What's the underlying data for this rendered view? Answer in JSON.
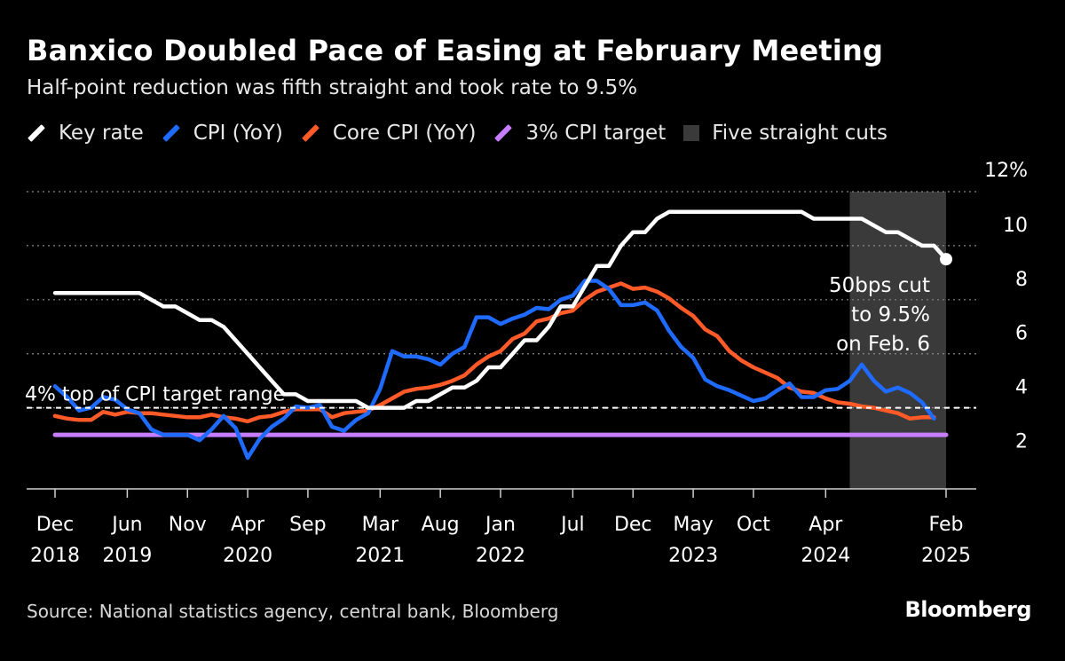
{
  "title": "Banxico Doubled Pace of Easing at February Meeting",
  "subtitle": "Half-point reduction was fifth straight and took rate to 9.5%",
  "legend": [
    {
      "label": "Key rate",
      "color": "#ffffff",
      "kind": "line"
    },
    {
      "label": "CPI (YoY)",
      "color": "#1f6bff",
      "kind": "line"
    },
    {
      "label": "Core CPI (YoY)",
      "color": "#ff5a28",
      "kind": "line"
    },
    {
      "label": "3% CPI target",
      "color": "#c77dff",
      "kind": "line"
    },
    {
      "label": "Five straight cuts",
      "color": "#3a3a3a",
      "kind": "box"
    }
  ],
  "source": "Source: National statistics agency, central bank, Bloomberg",
  "brand": "Bloomberg",
  "chart_data": {
    "type": "line",
    "x_start": "2018-12",
    "x_end": "2025-02",
    "ylim": [
      1,
      12
    ],
    "y_ticks": [
      "12%",
      "10",
      "8",
      "6",
      "4",
      "2"
    ],
    "y_tick_values": [
      12,
      10,
      8,
      6,
      4,
      2
    ],
    "x_ticks": [
      {
        "date": "2018-12",
        "line1": "Dec",
        "line2": "2018"
      },
      {
        "date": "2019-06",
        "line1": "Jun",
        "line2": "2019"
      },
      {
        "date": "2019-11",
        "line1": "Nov",
        "line2": ""
      },
      {
        "date": "2020-04",
        "line1": "Apr",
        "line2": "2020"
      },
      {
        "date": "2020-09",
        "line1": "Sep",
        "line2": ""
      },
      {
        "date": "2021-03",
        "line1": "Mar",
        "line2": "2021"
      },
      {
        "date": "2021-08",
        "line1": "Aug",
        "line2": ""
      },
      {
        "date": "2022-01",
        "line1": "Jan",
        "line2": "2022"
      },
      {
        "date": "2022-07",
        "line1": "Jul",
        "line2": ""
      },
      {
        "date": "2022-12",
        "line1": "Dec",
        "line2": ""
      },
      {
        "date": "2023-05",
        "line1": "May",
        "line2": "2023"
      },
      {
        "date": "2023-10",
        "line1": "Oct",
        "line2": ""
      },
      {
        "date": "2024-04",
        "line1": "Apr",
        "line2": "2024"
      },
      {
        "date": "2025-02",
        "line1": "Feb",
        "line2": "2025"
      }
    ],
    "shaded_region": {
      "label": "Five straight cuts",
      "start": "2024-06",
      "end": "2025-02"
    },
    "reference_lines": [
      {
        "name": "4% top of CPI target range",
        "value": 4,
        "label": "4% top of CPI target range"
      }
    ],
    "annotation": {
      "lines": [
        "50bps cut",
        "to 9.5%",
        "on Feb. 6"
      ],
      "date": "2025-02",
      "value": 9.5
    },
    "series": [
      {
        "name": "Key rate",
        "color": "#ffffff",
        "points": [
          [
            "2018-12",
            8.25
          ],
          [
            "2019-01",
            8.25
          ],
          [
            "2019-02",
            8.25
          ],
          [
            "2019-03",
            8.25
          ],
          [
            "2019-04",
            8.25
          ],
          [
            "2019-05",
            8.25
          ],
          [
            "2019-06",
            8.25
          ],
          [
            "2019-07",
            8.25
          ],
          [
            "2019-08",
            8.0
          ],
          [
            "2019-09",
            7.75
          ],
          [
            "2019-10",
            7.75
          ],
          [
            "2019-11",
            7.5
          ],
          [
            "2019-12",
            7.25
          ],
          [
            "2020-01",
            7.25
          ],
          [
            "2020-02",
            7.0
          ],
          [
            "2020-03",
            6.5
          ],
          [
            "2020-04",
            6.0
          ],
          [
            "2020-05",
            5.5
          ],
          [
            "2020-06",
            5.0
          ],
          [
            "2020-07",
            4.5
          ],
          [
            "2020-08",
            4.5
          ],
          [
            "2020-09",
            4.25
          ],
          [
            "2020-10",
            4.25
          ],
          [
            "2020-11",
            4.25
          ],
          [
            "2020-12",
            4.25
          ],
          [
            "2021-01",
            4.25
          ],
          [
            "2021-02",
            4.0
          ],
          [
            "2021-03",
            4.0
          ],
          [
            "2021-04",
            4.0
          ],
          [
            "2021-05",
            4.0
          ],
          [
            "2021-06",
            4.25
          ],
          [
            "2021-07",
            4.25
          ],
          [
            "2021-08",
            4.5
          ],
          [
            "2021-09",
            4.75
          ],
          [
            "2021-10",
            4.75
          ],
          [
            "2021-11",
            5.0
          ],
          [
            "2021-12",
            5.5
          ],
          [
            "2022-01",
            5.5
          ],
          [
            "2022-02",
            6.0
          ],
          [
            "2022-03",
            6.5
          ],
          [
            "2022-04",
            6.5
          ],
          [
            "2022-05",
            7.0
          ],
          [
            "2022-06",
            7.75
          ],
          [
            "2022-07",
            7.75
          ],
          [
            "2022-08",
            8.5
          ],
          [
            "2022-09",
            9.25
          ],
          [
            "2022-10",
            9.25
          ],
          [
            "2022-11",
            10.0
          ],
          [
            "2022-12",
            10.5
          ],
          [
            "2023-01",
            10.5
          ],
          [
            "2023-02",
            11.0
          ],
          [
            "2023-03",
            11.25
          ],
          [
            "2023-04",
            11.25
          ],
          [
            "2023-05",
            11.25
          ],
          [
            "2023-06",
            11.25
          ],
          [
            "2023-07",
            11.25
          ],
          [
            "2023-08",
            11.25
          ],
          [
            "2023-09",
            11.25
          ],
          [
            "2023-10",
            11.25
          ],
          [
            "2023-11",
            11.25
          ],
          [
            "2023-12",
            11.25
          ],
          [
            "2024-01",
            11.25
          ],
          [
            "2024-02",
            11.25
          ],
          [
            "2024-03",
            11.0
          ],
          [
            "2024-04",
            11.0
          ],
          [
            "2024-05",
            11.0
          ],
          [
            "2024-06",
            11.0
          ],
          [
            "2024-07",
            11.0
          ],
          [
            "2024-08",
            10.75
          ],
          [
            "2024-09",
            10.5
          ],
          [
            "2024-10",
            10.5
          ],
          [
            "2024-11",
            10.25
          ],
          [
            "2024-12",
            10.0
          ],
          [
            "2025-01",
            10.0
          ],
          [
            "2025-02",
            9.5
          ]
        ]
      },
      {
        "name": "CPI (YoY)",
        "color": "#1f6bff",
        "points": [
          [
            "2018-12",
            4.8
          ],
          [
            "2019-01",
            4.4
          ],
          [
            "2019-02",
            3.9
          ],
          [
            "2019-03",
            4.0
          ],
          [
            "2019-04",
            4.4
          ],
          [
            "2019-05",
            4.3
          ],
          [
            "2019-06",
            3.95
          ],
          [
            "2019-07",
            3.8
          ],
          [
            "2019-08",
            3.2
          ],
          [
            "2019-09",
            3.0
          ],
          [
            "2019-10",
            3.0
          ],
          [
            "2019-11",
            3.0
          ],
          [
            "2019-12",
            2.8
          ],
          [
            "2020-01",
            3.2
          ],
          [
            "2020-02",
            3.7
          ],
          [
            "2020-03",
            3.25
          ],
          [
            "2020-04",
            2.15
          ],
          [
            "2020-05",
            2.85
          ],
          [
            "2020-06",
            3.3
          ],
          [
            "2020-07",
            3.6
          ],
          [
            "2020-08",
            4.05
          ],
          [
            "2020-09",
            4.0
          ],
          [
            "2020-10",
            4.1
          ],
          [
            "2020-11",
            3.3
          ],
          [
            "2020-12",
            3.15
          ],
          [
            "2021-01",
            3.55
          ],
          [
            "2021-02",
            3.8
          ],
          [
            "2021-03",
            4.7
          ],
          [
            "2021-04",
            6.1
          ],
          [
            "2021-05",
            5.9
          ],
          [
            "2021-06",
            5.9
          ],
          [
            "2021-07",
            5.8
          ],
          [
            "2021-08",
            5.6
          ],
          [
            "2021-09",
            6.0
          ],
          [
            "2021-10",
            6.25
          ],
          [
            "2021-11",
            7.35
          ],
          [
            "2021-12",
            7.35
          ],
          [
            "2022-01",
            7.1
          ],
          [
            "2022-02",
            7.3
          ],
          [
            "2022-03",
            7.45
          ],
          [
            "2022-04",
            7.7
          ],
          [
            "2022-05",
            7.65
          ],
          [
            "2022-06",
            8.0
          ],
          [
            "2022-07",
            8.15
          ],
          [
            "2022-08",
            8.7
          ],
          [
            "2022-09",
            8.7
          ],
          [
            "2022-10",
            8.4
          ],
          [
            "2022-11",
            7.8
          ],
          [
            "2022-12",
            7.8
          ],
          [
            "2023-01",
            7.9
          ],
          [
            "2023-02",
            7.6
          ],
          [
            "2023-03",
            6.85
          ],
          [
            "2023-04",
            6.25
          ],
          [
            "2023-05",
            5.85
          ],
          [
            "2023-06",
            5.05
          ],
          [
            "2023-07",
            4.8
          ],
          [
            "2023-08",
            4.65
          ],
          [
            "2023-09",
            4.45
          ],
          [
            "2023-10",
            4.25
          ],
          [
            "2023-11",
            4.35
          ],
          [
            "2023-12",
            4.65
          ],
          [
            "2024-01",
            4.9
          ],
          [
            "2024-02",
            4.4
          ],
          [
            "2024-03",
            4.4
          ],
          [
            "2024-04",
            4.65
          ],
          [
            "2024-05",
            4.7
          ],
          [
            "2024-06",
            5.0
          ],
          [
            "2024-07",
            5.6
          ],
          [
            "2024-08",
            5.0
          ],
          [
            "2024-09",
            4.6
          ],
          [
            "2024-10",
            4.75
          ],
          [
            "2024-11",
            4.55
          ],
          [
            "2024-12",
            4.2
          ],
          [
            "2025-01",
            3.6
          ]
        ]
      },
      {
        "name": "Core CPI (YoY)",
        "color": "#ff5a28",
        "points": [
          [
            "2018-12",
            3.7
          ],
          [
            "2019-01",
            3.6
          ],
          [
            "2019-02",
            3.55
          ],
          [
            "2019-03",
            3.55
          ],
          [
            "2019-04",
            3.85
          ],
          [
            "2019-05",
            3.75
          ],
          [
            "2019-06",
            3.85
          ],
          [
            "2019-07",
            3.8
          ],
          [
            "2019-08",
            3.8
          ],
          [
            "2019-09",
            3.75
          ],
          [
            "2019-10",
            3.7
          ],
          [
            "2019-11",
            3.65
          ],
          [
            "2019-12",
            3.65
          ],
          [
            "2020-01",
            3.75
          ],
          [
            "2020-02",
            3.65
          ],
          [
            "2020-03",
            3.6
          ],
          [
            "2020-04",
            3.5
          ],
          [
            "2020-05",
            3.65
          ],
          [
            "2020-06",
            3.7
          ],
          [
            "2020-07",
            3.85
          ],
          [
            "2020-08",
            3.95
          ],
          [
            "2020-09",
            3.95
          ],
          [
            "2020-10",
            3.95
          ],
          [
            "2020-11",
            3.65
          ],
          [
            "2020-12",
            3.8
          ],
          [
            "2021-01",
            3.85
          ],
          [
            "2021-02",
            3.9
          ],
          [
            "2021-03",
            4.1
          ],
          [
            "2021-04",
            4.35
          ],
          [
            "2021-05",
            4.6
          ],
          [
            "2021-06",
            4.7
          ],
          [
            "2021-07",
            4.75
          ],
          [
            "2021-08",
            4.85
          ],
          [
            "2021-09",
            5.0
          ],
          [
            "2021-10",
            5.2
          ],
          [
            "2021-11",
            5.6
          ],
          [
            "2021-12",
            5.9
          ],
          [
            "2022-01",
            6.1
          ],
          [
            "2022-02",
            6.55
          ],
          [
            "2022-03",
            6.75
          ],
          [
            "2022-04",
            7.2
          ],
          [
            "2022-05",
            7.3
          ],
          [
            "2022-06",
            7.5
          ],
          [
            "2022-07",
            7.6
          ],
          [
            "2022-08",
            8.0
          ],
          [
            "2022-09",
            8.3
          ],
          [
            "2022-10",
            8.45
          ],
          [
            "2022-11",
            8.6
          ],
          [
            "2022-12",
            8.4
          ],
          [
            "2023-01",
            8.45
          ],
          [
            "2023-02",
            8.3
          ],
          [
            "2023-03",
            8.05
          ],
          [
            "2023-04",
            7.7
          ],
          [
            "2023-05",
            7.4
          ],
          [
            "2023-06",
            6.9
          ],
          [
            "2023-07",
            6.65
          ],
          [
            "2023-08",
            6.1
          ],
          [
            "2023-09",
            5.75
          ],
          [
            "2023-10",
            5.5
          ],
          [
            "2023-11",
            5.3
          ],
          [
            "2023-12",
            5.1
          ],
          [
            "2024-01",
            4.75
          ],
          [
            "2024-02",
            4.6
          ],
          [
            "2024-03",
            4.55
          ],
          [
            "2024-04",
            4.35
          ],
          [
            "2024-05",
            4.2
          ],
          [
            "2024-06",
            4.15
          ],
          [
            "2024-07",
            4.05
          ],
          [
            "2024-08",
            4.0
          ],
          [
            "2024-09",
            3.9
          ],
          [
            "2024-10",
            3.8
          ],
          [
            "2024-11",
            3.6
          ],
          [
            "2024-12",
            3.65
          ],
          [
            "2025-01",
            3.65
          ]
        ]
      },
      {
        "name": "3% CPI target",
        "color": "#c77dff",
        "points": [
          [
            "2018-12",
            3.0
          ],
          [
            "2025-02",
            3.0
          ]
        ]
      }
    ]
  }
}
